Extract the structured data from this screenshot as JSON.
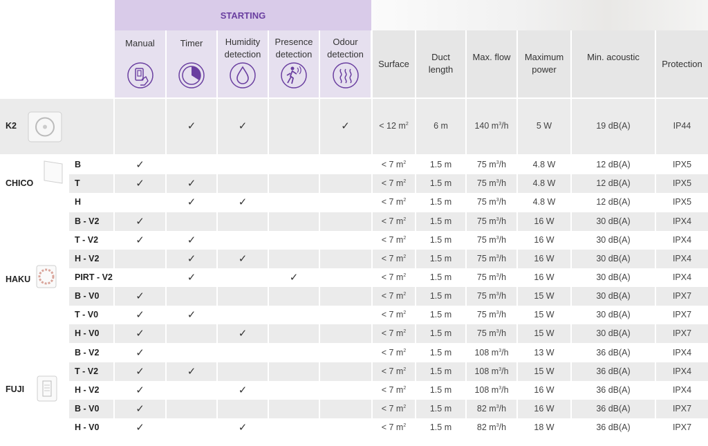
{
  "group_header": "STARTING",
  "columns": [
    {
      "key": "manual",
      "label": "Manual",
      "icon": "manual-switch-icon"
    },
    {
      "key": "timer",
      "label": "Timer",
      "icon": "timer-icon"
    },
    {
      "key": "humidity",
      "label": "Humidity detection",
      "icon": "humidity-drop-icon"
    },
    {
      "key": "presence",
      "label": "Presence detection",
      "icon": "presence-sensor-icon"
    },
    {
      "key": "odour",
      "label": "Odour detection",
      "icon": "odour-waves-icon"
    },
    {
      "key": "surface",
      "label": "Surface"
    },
    {
      "key": "duct",
      "label": "Duct length"
    },
    {
      "key": "flow",
      "label": "Max. flow"
    },
    {
      "key": "power",
      "label": "Maximum power"
    },
    {
      "key": "acoustic",
      "label": "Min. acoustic"
    },
    {
      "key": "protection",
      "label": "Protection"
    }
  ],
  "check_mark": "✓",
  "models": [
    {
      "name": "K2",
      "image": "k2-fan-image",
      "rows": [
        {
          "variant": "",
          "manual": false,
          "timer": true,
          "humidity": true,
          "presence": false,
          "odour": true,
          "surface": "< 12 m2",
          "duct": "6 m",
          "flow": "140 m3/h",
          "power": "5 W",
          "acoustic": "19 dB(A)",
          "protection": "IP44"
        }
      ]
    },
    {
      "name": "CHICO",
      "image": "chico-fan-image",
      "rows": [
        {
          "variant": "B",
          "manual": true,
          "timer": false,
          "humidity": false,
          "presence": false,
          "odour": false,
          "surface": "< 7 m2",
          "duct": "1.5 m",
          "flow": "75 m3/h",
          "power": "4.8 W",
          "acoustic": "12 dB(A)",
          "protection": "IPX5"
        },
        {
          "variant": "T",
          "manual": true,
          "timer": true,
          "humidity": false,
          "presence": false,
          "odour": false,
          "surface": "< 7 m2",
          "duct": "1.5 m",
          "flow": "75 m3/h",
          "power": "4.8 W",
          "acoustic": "12 dB(A)",
          "protection": "IPX5"
        },
        {
          "variant": "H",
          "manual": false,
          "timer": true,
          "humidity": true,
          "presence": false,
          "odour": false,
          "surface": "< 7 m2",
          "duct": "1.5 m",
          "flow": "75 m3/h",
          "power": "4.8 W",
          "acoustic": "12 dB(A)",
          "protection": "IPX5"
        }
      ]
    },
    {
      "name": "HAKU",
      "image": "haku-fan-image",
      "rows": [
        {
          "variant": "B - V2",
          "manual": true,
          "timer": false,
          "humidity": false,
          "presence": false,
          "odour": false,
          "surface": "< 7 m2",
          "duct": "1.5 m",
          "flow": "75 m3/h",
          "power": "16 W",
          "acoustic": "30 dB(A)",
          "protection": "IPX4"
        },
        {
          "variant": "T - V2",
          "manual": true,
          "timer": true,
          "humidity": false,
          "presence": false,
          "odour": false,
          "surface": "< 7 m2",
          "duct": "1.5 m",
          "flow": "75 m3/h",
          "power": "16 W",
          "acoustic": "30 dB(A)",
          "protection": "IPX4"
        },
        {
          "variant": "H - V2",
          "manual": false,
          "timer": true,
          "humidity": true,
          "presence": false,
          "odour": false,
          "surface": "< 7 m2",
          "duct": "1.5 m",
          "flow": "75 m3/h",
          "power": "16 W",
          "acoustic": "30 dB(A)",
          "protection": "IPX4"
        },
        {
          "variant": "PIRT - V2",
          "manual": false,
          "timer": true,
          "humidity": false,
          "presence": true,
          "odour": false,
          "surface": "< 7 m2",
          "duct": "1.5 m",
          "flow": "75 m3/h",
          "power": "16 W",
          "acoustic": "30 dB(A)",
          "protection": "IPX4"
        },
        {
          "variant": "B - V0",
          "manual": true,
          "timer": false,
          "humidity": false,
          "presence": false,
          "odour": false,
          "surface": "< 7 m2",
          "duct": "1.5 m",
          "flow": "75 m3/h",
          "power": "15 W",
          "acoustic": "30 dB(A)",
          "protection": "IPX7"
        },
        {
          "variant": "T - V0",
          "manual": true,
          "timer": true,
          "humidity": false,
          "presence": false,
          "odour": false,
          "surface": "< 7 m2",
          "duct": "1.5 m",
          "flow": "75 m3/h",
          "power": "15 W",
          "acoustic": "30 dB(A)",
          "protection": "IPX7"
        },
        {
          "variant": "H - V0",
          "manual": true,
          "timer": false,
          "humidity": true,
          "presence": false,
          "odour": false,
          "surface": "< 7 m2",
          "duct": "1.5 m",
          "flow": "75 m3/h",
          "power": "15 W",
          "acoustic": "30 dB(A)",
          "protection": "IPX7"
        }
      ]
    },
    {
      "name": "FUJI",
      "image": "fuji-fan-image",
      "rows": [
        {
          "variant": "B - V2",
          "manual": true,
          "timer": false,
          "humidity": false,
          "presence": false,
          "odour": false,
          "surface": "< 7 m2",
          "duct": "1.5 m",
          "flow": "108 m3/h",
          "power": "13 W",
          "acoustic": "36 dB(A)",
          "protection": "IPX4"
        },
        {
          "variant": "T - V2",
          "manual": true,
          "timer": true,
          "humidity": false,
          "presence": false,
          "odour": false,
          "surface": "< 7 m2",
          "duct": "1.5 m",
          "flow": "108 m3/h",
          "power": "15 W",
          "acoustic": "36 dB(A)",
          "protection": "IPX4"
        },
        {
          "variant": "H - V2",
          "manual": true,
          "timer": false,
          "humidity": true,
          "presence": false,
          "odour": false,
          "surface": "< 7 m2",
          "duct": "1.5 m",
          "flow": "108 m3/h",
          "power": "16 W",
          "acoustic": "36 dB(A)",
          "protection": "IPX4"
        },
        {
          "variant": "B - V0",
          "manual": true,
          "timer": false,
          "humidity": false,
          "presence": false,
          "odour": false,
          "surface": "< 7 m2",
          "duct": "1.5 m",
          "flow": "82 m3/h",
          "power": "16 W",
          "acoustic": "36 dB(A)",
          "protection": "IPX7"
        },
        {
          "variant": "H - V0",
          "manual": true,
          "timer": false,
          "humidity": true,
          "presence": false,
          "odour": false,
          "surface": "< 7 m2",
          "duct": "1.5 m",
          "flow": "82 m3/h",
          "power": "18 W",
          "acoustic": "36 dB(A)",
          "protection": "IPX7"
        }
      ]
    }
  ],
  "colors": {
    "accent": "#6a3fa0",
    "starting_bg": "#d9cbe9",
    "header_bg": "#e6e6e6",
    "shade_bg": "#ebebeb"
  }
}
